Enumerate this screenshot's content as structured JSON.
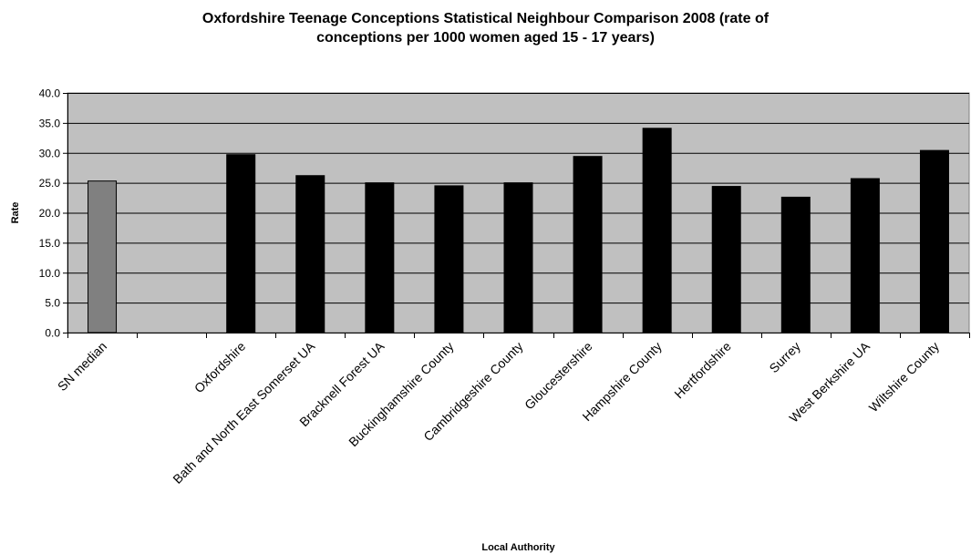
{
  "chart_data": {
    "type": "bar",
    "title_lines": [
      "Oxfordshire Teenage Conceptions Statistical Neighbour Comparison 2008 (rate of",
      "conceptions per 1000 women aged 15 - 17 years)"
    ],
    "xlabel": "Local Authority",
    "ylabel": "Rate",
    "ylim": [
      0,
      40
    ],
    "yticks": [
      "0.0",
      "5.0",
      "10.0",
      "15.0",
      "20.0",
      "25.0",
      "30.0",
      "35.0",
      "40.0"
    ],
    "grid": true,
    "legend": "none",
    "categories": [
      "SN median",
      "",
      "Oxfordshire",
      "Bath and North East Somerset UA",
      "Bracknell Forest UA",
      "Buckinghamshire County",
      "Cambridgeshire County",
      "Gloucestershire",
      "Hampshire County",
      "Hertfordshire",
      "Surrey",
      "West Berkshire UA",
      "Wiltshire County"
    ],
    "values": [
      25.3,
      null,
      29.7,
      26.2,
      25.0,
      24.5,
      25.0,
      29.4,
      34.1,
      24.4,
      22.6,
      25.7,
      30.4
    ],
    "bar_colors": [
      "#808080",
      "#000000",
      "#000000",
      "#000000",
      "#000000",
      "#000000",
      "#000000",
      "#000000",
      "#000000",
      "#000000",
      "#000000",
      "#000000",
      "#000000"
    ],
    "plot_background": "#c0c0c0",
    "gridline_color": "#000000"
  }
}
